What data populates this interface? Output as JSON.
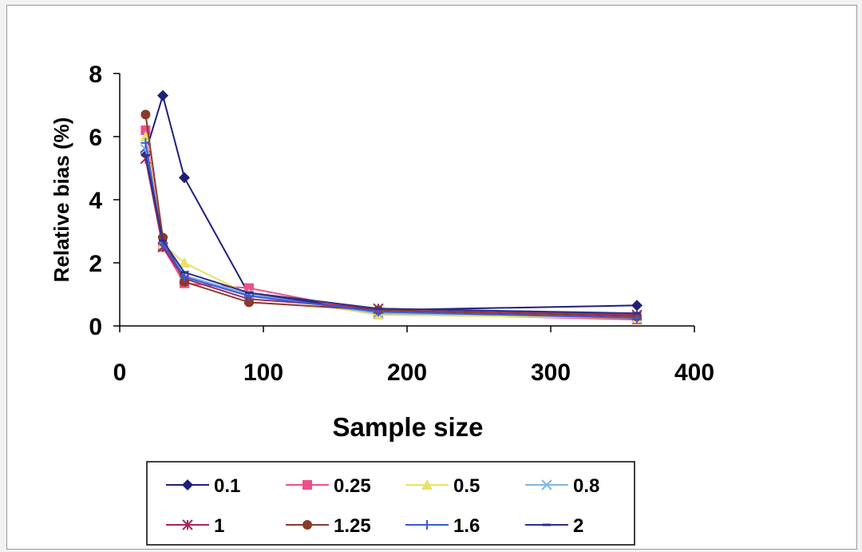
{
  "chart_data": {
    "type": "line",
    "xlabel": "Sample size",
    "ylabel": "Relative bias (%)",
    "xlim": [
      0,
      400
    ],
    "ylim": [
      0,
      8
    ],
    "xticks": [
      "0",
      "100",
      "200",
      "300",
      "400"
    ],
    "yticks": [
      "0",
      "2",
      "4",
      "6",
      "8"
    ],
    "grid": false,
    "legend_position": "bottom",
    "x": [
      18,
      30,
      45,
      90,
      180,
      360
    ],
    "series": [
      {
        "name": "0.1",
        "color": "#1f1f7a",
        "marker": "diamond",
        "values": [
          5.5,
          7.3,
          4.7,
          1.0,
          0.5,
          0.65
        ]
      },
      {
        "name": "0.25",
        "color": "#ee4f8b",
        "marker": "square",
        "values": [
          6.2,
          2.5,
          1.35,
          1.2,
          0.4,
          0.2
        ]
      },
      {
        "name": "0.5",
        "color": "#e8e26a",
        "marker": "triangle",
        "values": [
          6.0,
          2.6,
          2.0,
          1.0,
          0.35,
          0.25
        ]
      },
      {
        "name": "0.8",
        "color": "#7fb6e6",
        "marker": "x",
        "values": [
          5.6,
          2.7,
          1.6,
          1.0,
          0.4,
          0.3
        ]
      },
      {
        "name": "1",
        "color": "#a3285d",
        "marker": "star",
        "values": [
          5.3,
          2.5,
          1.5,
          0.85,
          0.55,
          0.35
        ]
      },
      {
        "name": "1.25",
        "color": "#8b3a2b",
        "marker": "circle",
        "values": [
          6.7,
          2.8,
          1.4,
          0.75,
          0.5,
          0.3
        ]
      },
      {
        "name": "1.6",
        "color": "#3a5ad8",
        "marker": "plus",
        "values": [
          5.8,
          2.6,
          1.55,
          0.95,
          0.45,
          0.25
        ]
      },
      {
        "name": "2",
        "color": "#2f2f8a",
        "marker": "dash",
        "values": [
          5.4,
          2.7,
          1.7,
          1.05,
          0.55,
          0.4
        ]
      }
    ]
  }
}
